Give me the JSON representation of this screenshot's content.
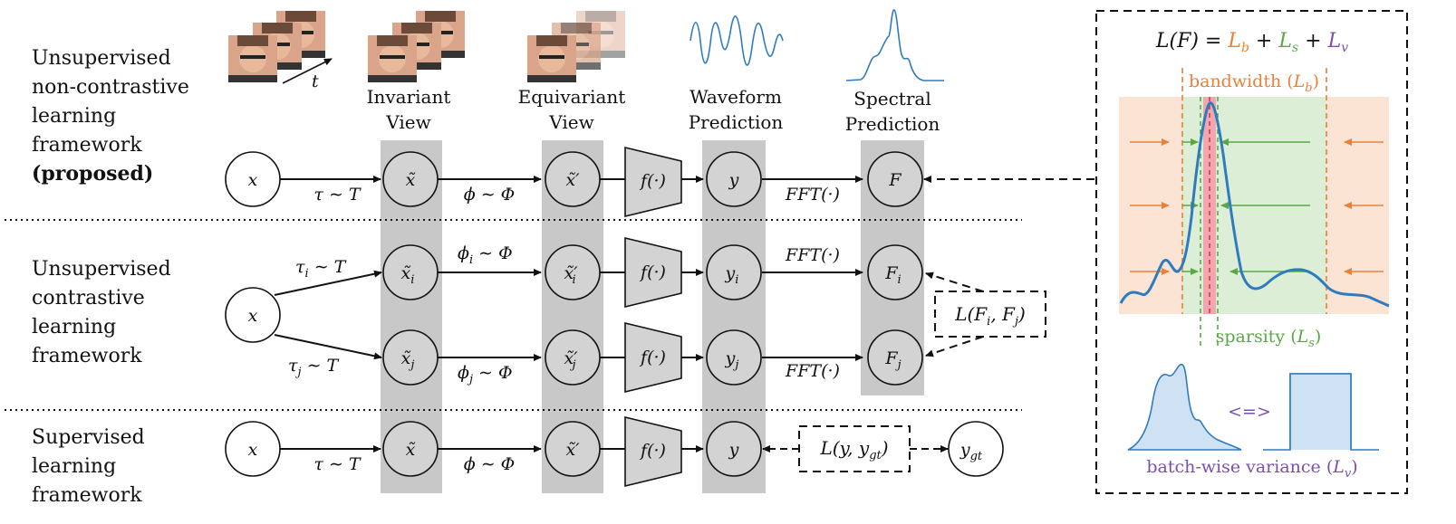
{
  "rows": {
    "top": {
      "label_lines": [
        "Unsupervised",
        "non-contrastive",
        "learning",
        "framework"
      ],
      "label_bold": "(proposed)"
    },
    "middle": {
      "label_lines": [
        "Unsupervised",
        "contrastive",
        "learning",
        "framework"
      ]
    },
    "bottom": {
      "label_lines": [
        "Supervised",
        "learning",
        "framework"
      ]
    }
  },
  "columns": {
    "invariant": [
      "Invariant",
      "View"
    ],
    "equivariant": [
      "Equivariant",
      "View"
    ],
    "waveform": [
      "Waveform",
      "Prediction"
    ],
    "spectral": [
      "Spectral",
      "Prediction"
    ]
  },
  "time_axis_label": "t",
  "nodes": {
    "x": "x",
    "x_tilde": "x̃",
    "x_tilde_prime": "x̃′",
    "x_tilde_i": "x̃",
    "x_tilde_j": "x̃",
    "x_tilde_prime_i": "x̃′",
    "x_tilde_prime_j": "x̃′",
    "sub_i": "i",
    "sub_j": "j",
    "y": "y",
    "y_i": "y",
    "y_j": "y",
    "F": "F",
    "F_i": "F",
    "F_j": "F",
    "y_gt": "y",
    "sub_gt": "gt",
    "f": "f(·)"
  },
  "edges": {
    "tau_T": "τ ∼ T",
    "phi_Phi": "ϕ ∼ Φ",
    "tau_i": "τ",
    "tau_j": "τ",
    "phi_i": "ϕ",
    "phi_j": "ϕ",
    "sim_T": " ∼ T",
    "sim_Phi": " ∼ Φ",
    "fft": "FFT(·)"
  },
  "losses": {
    "contrastive": "L(F",
    "contrastive_i": "i",
    "contrastive_mid": ", F",
    "contrastive_j": "j",
    "contrastive_end": ")",
    "supervised": "L(y, y",
    "supervised_gt": "gt",
    "supervised_end": ")"
  },
  "panel": {
    "formula_lhs": "L(F) = ",
    "L": "L",
    "b": "b",
    "s": "s",
    "v": "v",
    "plus": " + ",
    "bandwidth": "bandwidth (",
    "sparsity": "sparsity (",
    "batch_variance": "batch-wise variance (",
    "close_paren": ")",
    "equiv": "<=>"
  },
  "colors": {
    "band_orange": "#fbe4d4",
    "band_green": "#dcefd6",
    "orange": "#e8813a",
    "green": "#5aa845",
    "purple": "#7b4fb0",
    "blue": "#2f7bbf",
    "gray_column": "#c8c8c8",
    "node_fill": "#d3d3d3"
  }
}
